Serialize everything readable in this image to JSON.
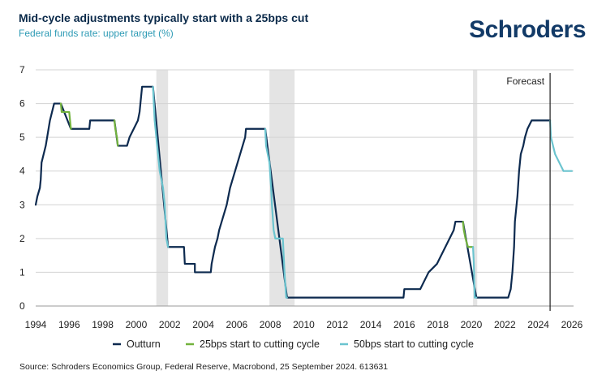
{
  "header": {
    "title": "Mid-cycle adjustments typically start with a 25bps cut",
    "subtitle": "Federal funds rate: upper target (%)",
    "logo": "Schroders"
  },
  "footer": {
    "source": "Source: Schroders Economics Group, Federal Reserve, Macrobond, 25 September 2024. 613631"
  },
  "colors": {
    "outturn": "#0d2a4f",
    "cut25": "#72b23d",
    "cut50": "#6bc4cf",
    "recession": "#e4e4e4",
    "grid": "#d3d3d3",
    "forecast_line": "#1e1e1e"
  },
  "chart_data": {
    "type": "line",
    "title": "Mid-cycle adjustments typically start with a 25bps cut",
    "ylabel": "Federal funds rate: upper target (%)",
    "xlabel": "",
    "xlim": [
      1994,
      2026.1
    ],
    "ylim": [
      0,
      7
    ],
    "x_ticks": [
      "1994",
      "1996",
      "1998",
      "2000",
      "2002",
      "2004",
      "2006",
      "2008",
      "2010",
      "2012",
      "2014",
      "2016",
      "2018",
      "2020",
      "2022",
      "2024",
      "2026"
    ],
    "y_ticks": [
      "0",
      "1",
      "2",
      "3",
      "4",
      "5",
      "6",
      "7"
    ],
    "forecast_label": "Forecast",
    "forecast_start": 2024.7,
    "recessions": [
      [
        2001.2,
        2001.9
      ],
      [
        2007.95,
        2009.45
      ],
      [
        2020.1,
        2020.35
      ]
    ],
    "series": [
      {
        "name": "Outturn",
        "key": "outturn",
        "points": [
          [
            1994.0,
            3.0
          ],
          [
            1994.1,
            3.25
          ],
          [
            1994.25,
            3.5
          ],
          [
            1994.3,
            3.75
          ],
          [
            1994.35,
            4.25
          ],
          [
            1994.6,
            4.75
          ],
          [
            1994.85,
            5.5
          ],
          [
            1995.1,
            6.0
          ],
          [
            1995.5,
            6.0
          ],
          [
            1996.1,
            5.25
          ],
          [
            1997.2,
            5.25
          ],
          [
            1997.25,
            5.5
          ],
          [
            1998.7,
            5.5
          ],
          [
            1998.9,
            4.75
          ],
          [
            1999.45,
            4.75
          ],
          [
            1999.6,
            5.0
          ],
          [
            1999.85,
            5.25
          ],
          [
            2000.1,
            5.5
          ],
          [
            2000.2,
            5.75
          ],
          [
            2000.35,
            6.5
          ],
          [
            2001.0,
            6.5
          ],
          [
            2001.9,
            1.75
          ],
          [
            2002.85,
            1.75
          ],
          [
            2002.9,
            1.25
          ],
          [
            2003.5,
            1.25
          ],
          [
            2003.5,
            1.0
          ],
          [
            2004.45,
            1.0
          ],
          [
            2004.5,
            1.25
          ],
          [
            2004.6,
            1.5
          ],
          [
            2004.7,
            1.75
          ],
          [
            2004.85,
            2.0
          ],
          [
            2004.95,
            2.25
          ],
          [
            2005.1,
            2.5
          ],
          [
            2005.25,
            2.75
          ],
          [
            2005.4,
            3.0
          ],
          [
            2005.5,
            3.25
          ],
          [
            2005.6,
            3.5
          ],
          [
            2005.75,
            3.75
          ],
          [
            2005.9,
            4.0
          ],
          [
            2006.05,
            4.25
          ],
          [
            2006.2,
            4.5
          ],
          [
            2006.35,
            4.75
          ],
          [
            2006.5,
            5.0
          ],
          [
            2006.55,
            5.25
          ],
          [
            2007.7,
            5.25
          ],
          [
            2009.0,
            0.25
          ],
          [
            2015.95,
            0.25
          ],
          [
            2016.0,
            0.5
          ],
          [
            2016.95,
            0.5
          ],
          [
            2017.2,
            0.75
          ],
          [
            2017.45,
            1.0
          ],
          [
            2017.95,
            1.25
          ],
          [
            2018.2,
            1.5
          ],
          [
            2018.45,
            1.75
          ],
          [
            2018.7,
            2.0
          ],
          [
            2018.95,
            2.25
          ],
          [
            2019.05,
            2.5
          ],
          [
            2019.5,
            2.5
          ],
          [
            2020.3,
            0.25
          ],
          [
            2022.2,
            0.25
          ],
          [
            2022.35,
            0.5
          ],
          [
            2022.45,
            1.0
          ],
          [
            2022.55,
            1.75
          ],
          [
            2022.6,
            2.5
          ],
          [
            2022.75,
            3.25
          ],
          [
            2022.85,
            4.0
          ],
          [
            2022.95,
            4.5
          ],
          [
            2023.1,
            4.75
          ],
          [
            2023.2,
            5.0
          ],
          [
            2023.35,
            5.25
          ],
          [
            2023.6,
            5.5
          ],
          [
            2024.7,
            5.5
          ]
        ]
      },
      {
        "name": "25bps start to cutting cycle",
        "key": "cut25",
        "points": [
          [
            1995.5,
            6.0
          ],
          [
            1995.55,
            5.75
          ],
          [
            1996.0,
            5.75
          ],
          [
            1996.1,
            5.25
          ]
        ]
      },
      {
        "name": "25bps start to cutting cycle",
        "key": "cut25",
        "points": [
          [
            1998.7,
            5.5
          ],
          [
            1998.75,
            5.25
          ],
          [
            1998.85,
            5.0
          ],
          [
            1998.9,
            4.75
          ]
        ]
      },
      {
        "name": "25bps start to cutting cycle",
        "key": "cut25",
        "points": [
          [
            2019.5,
            2.5
          ],
          [
            2019.55,
            2.25
          ],
          [
            2019.65,
            2.0
          ],
          [
            2019.8,
            1.75
          ],
          [
            2020.1,
            1.75
          ]
        ]
      },
      {
        "name": "50bps start to cutting cycle",
        "key": "cut50",
        "points": [
          [
            2001.0,
            6.5
          ],
          [
            2001.05,
            6.0
          ],
          [
            2001.1,
            5.5
          ],
          [
            2001.2,
            5.0
          ],
          [
            2001.3,
            4.5
          ],
          [
            2001.4,
            4.0
          ],
          [
            2001.5,
            3.75
          ],
          [
            2001.6,
            3.5
          ],
          [
            2001.7,
            3.0
          ],
          [
            2001.75,
            2.5
          ],
          [
            2001.8,
            2.0
          ],
          [
            2001.9,
            1.75
          ]
        ]
      },
      {
        "name": "50bps start to cutting cycle",
        "key": "cut50",
        "points": [
          [
            2007.7,
            5.25
          ],
          [
            2007.75,
            4.75
          ],
          [
            2007.85,
            4.5
          ],
          [
            2007.95,
            4.25
          ],
          [
            2008.05,
            3.5
          ],
          [
            2008.1,
            3.0
          ],
          [
            2008.2,
            2.25
          ],
          [
            2008.3,
            2.0
          ],
          [
            2008.75,
            2.0
          ],
          [
            2008.8,
            1.5
          ],
          [
            2008.85,
            1.0
          ],
          [
            2008.95,
            0.25
          ],
          [
            2009.0,
            0.25
          ]
        ]
      },
      {
        "name": "50bps start to cutting cycle",
        "key": "cut50",
        "points": [
          [
            2020.1,
            1.75
          ],
          [
            2020.15,
            1.25
          ],
          [
            2020.2,
            0.25
          ],
          [
            2020.3,
            0.25
          ]
        ]
      },
      {
        "name": "50bps start to cutting cycle",
        "key": "cut50",
        "points": [
          [
            2024.7,
            5.5
          ],
          [
            2024.75,
            5.0
          ],
          [
            2025.0,
            4.5
          ],
          [
            2025.25,
            4.25
          ],
          [
            2025.5,
            4.0
          ],
          [
            2026.0,
            4.0
          ]
        ]
      }
    ],
    "legend": [
      {
        "label": "Outturn",
        "key": "outturn"
      },
      {
        "label": "25bps start to cutting cycle",
        "key": "cut25"
      },
      {
        "label": "50bps start to cutting cycle",
        "key": "cut50"
      }
    ]
  }
}
